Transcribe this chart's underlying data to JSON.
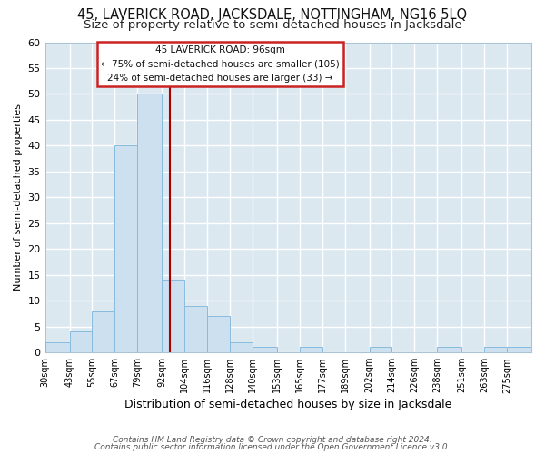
{
  "title": "45, LAVERICK ROAD, JACKSDALE, NOTTINGHAM, NG16 5LQ",
  "subtitle": "Size of property relative to semi-detached houses in Jacksdale",
  "xlabel": "Distribution of semi-detached houses by size in Jacksdale",
  "ylabel": "Number of semi-detached properties",
  "bin_labels": [
    "30sqm",
    "43sqm",
    "55sqm",
    "67sqm",
    "79sqm",
    "92sqm",
    "104sqm",
    "116sqm",
    "128sqm",
    "140sqm",
    "153sqm",
    "165sqm",
    "177sqm",
    "189sqm",
    "202sqm",
    "214sqm",
    "226sqm",
    "238sqm",
    "251sqm",
    "263sqm",
    "275sqm"
  ],
  "bin_edges": [
    30,
    43,
    55,
    67,
    79,
    92,
    104,
    116,
    128,
    140,
    153,
    165,
    177,
    189,
    202,
    214,
    226,
    238,
    251,
    263,
    275,
    288
  ],
  "counts": [
    2,
    4,
    8,
    40,
    50,
    14,
    9,
    7,
    2,
    1,
    0,
    1,
    0,
    0,
    1,
    0,
    0,
    1,
    0,
    1,
    1
  ],
  "bar_color": "#cce0f0",
  "bar_edge_color": "#88bbdd",
  "property_value": 96,
  "vline_color": "#aa0000",
  "annotation_title": "45 LAVERICK ROAD: 96sqm",
  "annotation_line1": "← 75% of semi-detached houses are smaller (105)",
  "annotation_line2": "24% of semi-detached houses are larger (33) →",
  "annotation_box_color": "#ffffff",
  "annotation_box_edge": "#cc2222",
  "ylim": [
    0,
    60
  ],
  "yticks": [
    0,
    5,
    10,
    15,
    20,
    25,
    30,
    35,
    40,
    45,
    50,
    55,
    60
  ],
  "footer1": "Contains HM Land Registry data © Crown copyright and database right 2024.",
  "footer2": "Contains public sector information licensed under the Open Government Licence v3.0.",
  "bg_color": "#ffffff",
  "plot_bg_color": "#dce8f0",
  "grid_color": "#ffffff",
  "title_fontsize": 10.5,
  "subtitle_fontsize": 9.5
}
